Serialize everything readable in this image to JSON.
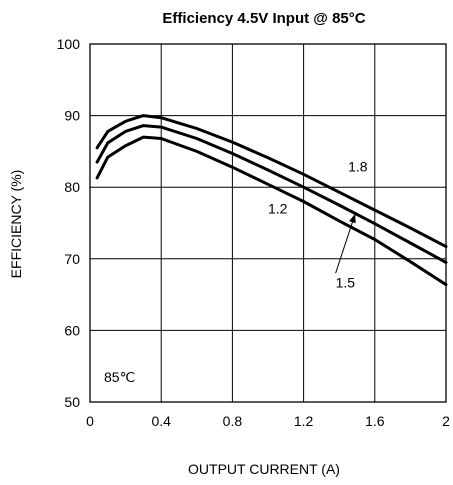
{
  "chart_data": {
    "type": "line",
    "title": "Efficiency 4.5V Input @ 85°C",
    "xlabel": "OUTPUT CURRENT (A)",
    "ylabel": "EFFICIENCY (%)",
    "xlim": [
      0,
      2
    ],
    "ylim": [
      50,
      100
    ],
    "x_ticks": [
      "0",
      "0.4",
      "0.8",
      "1.2",
      "1.6",
      "2"
    ],
    "y_ticks": [
      "50",
      "60",
      "70",
      "80",
      "90",
      "100"
    ],
    "grid": true,
    "annotation": "85℃",
    "series": [
      {
        "name": "1.8",
        "x": [
          0.04,
          0.1,
          0.2,
          0.3,
          0.4,
          0.6,
          0.8,
          1.0,
          1.2,
          1.4,
          1.6,
          1.8,
          2.0
        ],
        "y": [
          85.5,
          87.8,
          89.2,
          90.0,
          89.7,
          88.2,
          86.3,
          84.1,
          81.8,
          79.3,
          76.8,
          74.3,
          71.7
        ]
      },
      {
        "name": "1.5",
        "x": [
          0.04,
          0.1,
          0.2,
          0.3,
          0.4,
          0.6,
          0.8,
          1.0,
          1.2,
          1.4,
          1.6,
          1.8,
          2.0
        ],
        "y": [
          83.5,
          86.2,
          87.8,
          88.6,
          88.4,
          86.8,
          84.7,
          82.4,
          80.0,
          77.5,
          74.9,
          72.2,
          69.5
        ]
      },
      {
        "name": "1.2",
        "x": [
          0.04,
          0.1,
          0.2,
          0.3,
          0.4,
          0.6,
          0.8,
          1.0,
          1.2,
          1.4,
          1.6,
          1.8,
          2.0
        ],
        "y": [
          81.3,
          84.2,
          85.8,
          87.0,
          86.8,
          85.0,
          82.8,
          80.4,
          78.0,
          75.3,
          72.7,
          69.6,
          66.4
        ]
      }
    ],
    "curve_labels": [
      {
        "text": "1.8",
        "x": 1.45,
        "y": 82.2
      },
      {
        "text": "1.2",
        "x": 1.0,
        "y": 76.3
      },
      {
        "text": "1.5",
        "x": 1.38,
        "y": 66.0
      }
    ],
    "arrow": {
      "from": [
        1.38,
        68.0
      ],
      "to": [
        1.49,
        76.3
      ]
    },
    "colors": {
      "line": "#000000",
      "grid": "#000000",
      "background": "#ffffff"
    }
  }
}
